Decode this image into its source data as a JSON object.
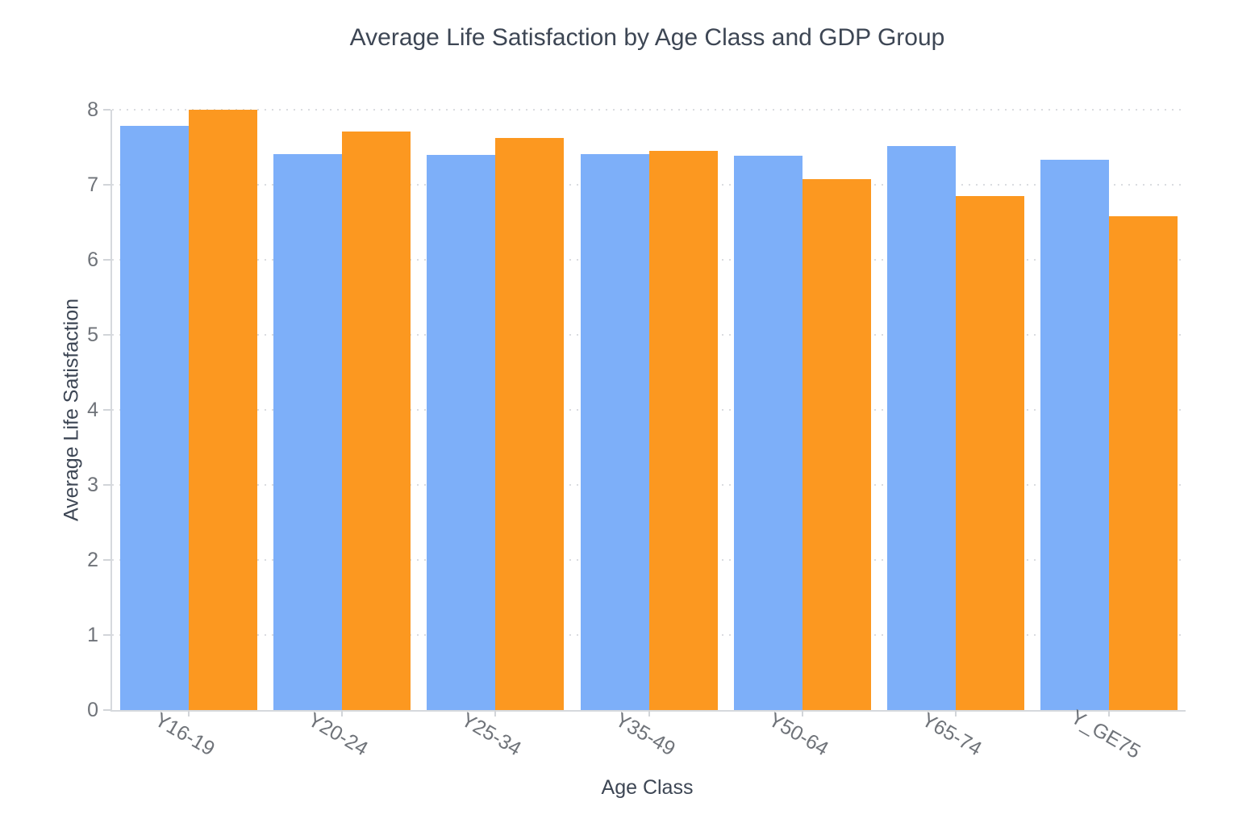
{
  "chart_data": {
    "type": "bar",
    "title": "Average Life Satisfaction by Age Class and GDP Group",
    "xlabel": "Age Class",
    "ylabel": "Average Life Satisfaction",
    "categories": [
      "Y16-19",
      "Y20-24",
      "Y25-34",
      "Y35-49",
      "Y50-64",
      "Y65-74",
      "Y_GE75"
    ],
    "series": [
      {
        "name": "blue",
        "color": "#7DAFF9",
        "values": [
          7.78,
          7.41,
          7.4,
          7.41,
          7.39,
          7.52,
          7.33
        ]
      },
      {
        "name": "orange",
        "color": "#FC9820",
        "values": [
          8.0,
          7.71,
          7.62,
          7.45,
          7.08,
          6.85,
          6.58
        ]
      }
    ],
    "ylim": [
      0,
      8
    ],
    "yticks": [
      0,
      1,
      2,
      3,
      4,
      5,
      6,
      7,
      8
    ],
    "grid": true,
    "grid_style": "dotted",
    "legend_position": "none",
    "x_tick_angle_deg": 30
  },
  "colors": {
    "background": "#ffffff",
    "title_text": "#3d4654",
    "tick_text": "#6f7379",
    "axis_line": "#d6d9dd",
    "grid_line": "#dadce0",
    "series_blue": "#7DAFF9",
    "series_orange": "#FC9820"
  }
}
